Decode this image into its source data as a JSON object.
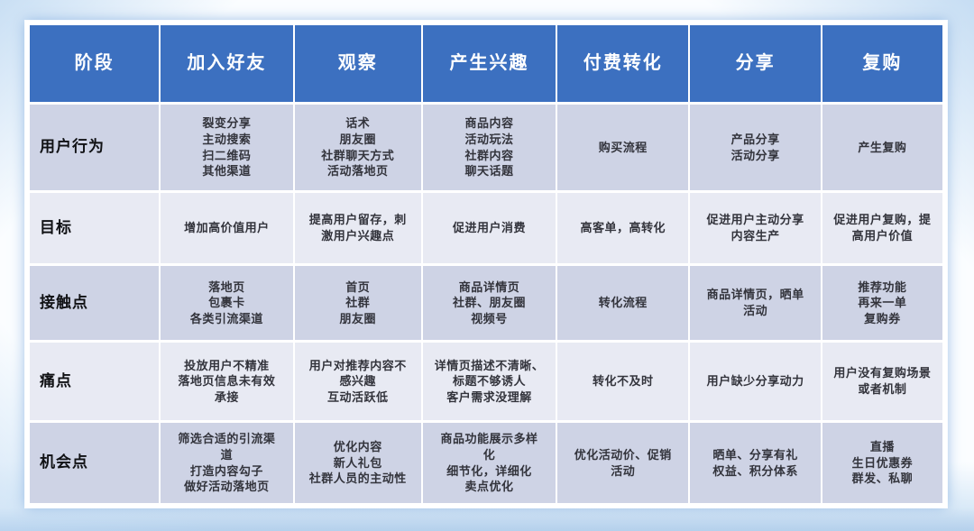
{
  "table": {
    "columns": [
      "阶段",
      "加入好友",
      "观察",
      "产生兴趣",
      "付费转化",
      "分享",
      "复购"
    ],
    "rows": [
      {
        "label": "用户行为",
        "cells": [
          "裂变分享\n主动搜索\n扫二维码\n其他渠道",
          "话术\n朋友圈\n社群聊天方式\n活动落地页",
          "商品内容\n活动玩法\n社群内容\n聊天话题",
          "购买流程",
          "产品分享\n活动分享",
          "产生复购"
        ]
      },
      {
        "label": "目标",
        "cells": [
          "增加高价值用户",
          "提高用户留存，刺\n激用户兴趣点",
          "促进用户消费",
          "高客单，高转化",
          "促进用户主动分享\n内容生产",
          "促进用户复购，提\n高用户价值"
        ]
      },
      {
        "label": "接触点",
        "cells": [
          "落地页\n包裹卡\n各类引流渠道",
          "首页\n社群\n朋友圈",
          "商品详情页\n社群、朋友圈\n视频号",
          "转化流程",
          "商品详情页，晒单\n活动",
          "推荐功能\n再来一单\n复购券"
        ]
      },
      {
        "label": "痛点",
        "cells": [
          "投放用户不精准\n落地页信息未有效\n承接",
          "用户对推荐内容不\n感兴趣\n互动活跃低",
          "详情页描述不清晰、\n标题不够诱人\n客户需求没理解",
          "转化不及时",
          "用户缺少分享动力",
          "用户没有复购场景\n或者机制"
        ]
      },
      {
        "label": "机会点",
        "cells": [
          "筛选合适的引流渠\n道\n打造内容勾子\n做好活动落地页",
          "优化内容\n新人礼包\n社群人员的主动性",
          "商品功能展示多样\n化\n细节化，详细化\n卖点优化",
          "优化活动价、促销\n活动",
          "晒单、分享有礼\n权益、积分体系",
          "直播\n生日优惠券\n群发、私聊"
        ]
      }
    ]
  },
  "colors": {
    "header_blue": "#3c70c0",
    "row_dark": "#ced3e5",
    "row_light": "#e8eaf3",
    "table_border": "#ffffff",
    "background_tint": "#cfe3f6"
  }
}
